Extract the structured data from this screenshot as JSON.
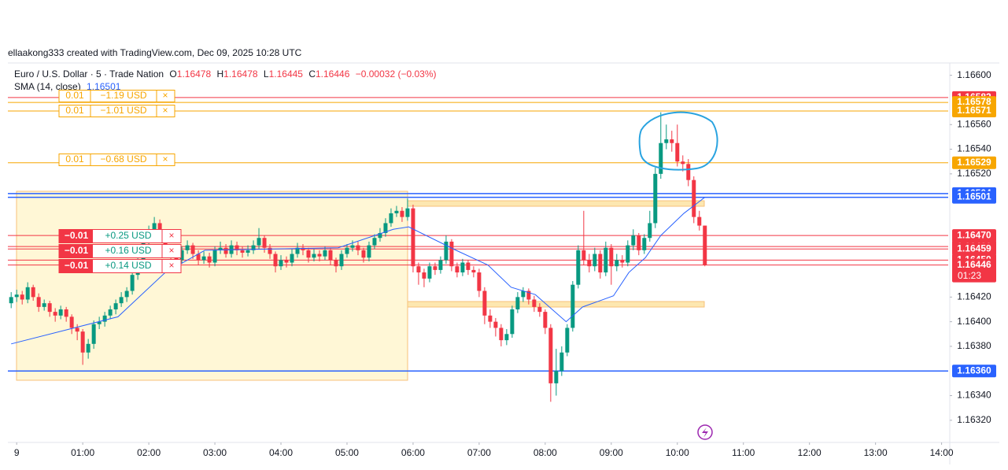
{
  "header": "ellaakong333 created with TradingView.com, Dec 09, 2025 10:28 UTC",
  "legend": {
    "symbol": "Euro / U.S. Dollar · 5 · Trade Nation",
    "o_label": "O",
    "o": "1.16478",
    "h_label": "H",
    "h": "1.16478",
    "l_label": "L",
    "l": "1.16445",
    "c_label": "C",
    "c": "1.16446",
    "change": "−0.00032 (−0.03%)",
    "sma_label": "SMA (14, close)",
    "sma_value": "1.16501"
  },
  "orders": [
    {
      "qty": "0.01",
      "pnl": "−1.19 USD",
      "kind": "pending"
    },
    {
      "qty": "0.01",
      "pnl": "−1.01 USD",
      "kind": "pending"
    },
    {
      "qty": "0.01",
      "pnl": "−0.68 USD",
      "kind": "pending"
    },
    {
      "qty": "−0.01",
      "pnl": "+0.25 USD",
      "kind": "open"
    },
    {
      "qty": "−0.01",
      "pnl": "+0.16 USD",
      "kind": "open"
    },
    {
      "qty": "−0.01",
      "pnl": "+0.14 USD",
      "kind": "open"
    }
  ],
  "close_symbol": "×",
  "chart_data": {
    "type": "candlestick",
    "up_color": "#089981",
    "down_color": "#f23645",
    "x": [
      -5,
      0,
      5,
      10,
      15,
      20,
      25,
      30,
      35,
      40,
      45,
      50,
      55,
      60,
      65,
      70,
      75,
      80,
      85,
      90,
      95,
      100,
      105,
      110,
      115,
      120,
      125,
      130,
      135,
      140,
      145,
      150,
      155,
      160,
      165,
      170,
      175,
      180,
      185,
      190,
      195,
      200,
      205,
      210,
      215,
      220,
      225,
      230,
      235,
      240,
      245,
      250,
      255,
      260,
      265,
      270,
      275,
      280,
      285,
      290,
      295,
      300,
      305,
      310,
      315,
      320,
      325,
      330,
      335,
      340,
      345,
      350,
      355,
      360,
      365,
      370,
      375,
      380,
      385,
      390,
      395,
      400,
      405,
      410,
      415,
      420,
      425,
      430,
      435,
      440,
      445,
      450,
      455,
      460,
      465,
      470,
      475,
      480,
      485,
      490,
      495,
      500,
      505,
      510,
      515,
      520,
      525,
      530,
      535,
      540,
      545,
      550,
      555,
      560,
      565,
      570,
      575,
      580,
      585,
      590,
      595,
      600,
      605,
      610,
      615,
      620,
      625
    ],
    "candles": [
      [
        1.16415,
        1.16424,
        1.16411,
        1.1642
      ],
      [
        1.1642,
        1.16426,
        1.16416,
        1.16422
      ],
      [
        1.16422,
        1.16425,
        1.16414,
        1.16418
      ],
      [
        1.16418,
        1.16432,
        1.16415,
        1.16428
      ],
      [
        1.16428,
        1.1643,
        1.16417,
        1.1642
      ],
      [
        1.1642,
        1.16423,
        1.16408,
        1.16412
      ],
      [
        1.16412,
        1.16418,
        1.16409,
        1.16415
      ],
      [
        1.16415,
        1.16417,
        1.16404,
        1.16408
      ],
      [
        1.16408,
        1.16411,
        1.164,
        1.16405
      ],
      [
        1.16405,
        1.16413,
        1.16402,
        1.1641
      ],
      [
        1.1641,
        1.16412,
        1.164,
        1.16404
      ],
      [
        1.16404,
        1.16406,
        1.1639,
        1.16395
      ],
      [
        1.16395,
        1.16398,
        1.16385,
        1.16392
      ],
      [
        1.16392,
        1.16394,
        1.16365,
        1.16375
      ],
      [
        1.16375,
        1.16386,
        1.1637,
        1.16382
      ],
      [
        1.16382,
        1.16401,
        1.16378,
        1.16398
      ],
      [
        1.16398,
        1.16404,
        1.16394,
        1.164
      ],
      [
        1.164,
        1.16408,
        1.16396,
        1.16405
      ],
      [
        1.16405,
        1.16413,
        1.16402,
        1.1641
      ],
      [
        1.1641,
        1.16418,
        1.16406,
        1.16415
      ],
      [
        1.16415,
        1.16424,
        1.16412,
        1.1642
      ],
      [
        1.1642,
        1.16428,
        1.16416,
        1.16425
      ],
      [
        1.16425,
        1.16441,
        1.16422,
        1.16438
      ],
      [
        1.16438,
        1.16452,
        1.16434,
        1.16448
      ],
      [
        1.16448,
        1.16468,
        1.16445,
        1.16465
      ],
      [
        1.16465,
        1.16478,
        1.16462,
        1.16475
      ],
      [
        1.16475,
        1.16485,
        1.1647,
        1.1648
      ],
      [
        1.1648,
        1.16483,
        1.16466,
        1.1647
      ],
      [
        1.1647,
        1.16472,
        1.16455,
        1.1646
      ],
      [
        1.1646,
        1.16463,
        1.1645,
        1.16455
      ],
      [
        1.16455,
        1.16458,
        1.16446,
        1.1645
      ],
      [
        1.1645,
        1.16461,
        1.16447,
        1.16458
      ],
      [
        1.16458,
        1.16466,
        1.16455,
        1.16462
      ],
      [
        1.16462,
        1.16464,
        1.16451,
        1.16455
      ],
      [
        1.16455,
        1.16458,
        1.16446,
        1.1645
      ],
      [
        1.1645,
        1.16457,
        1.16447,
        1.16453
      ],
      [
        1.16453,
        1.16456,
        1.16444,
        1.16448
      ],
      [
        1.16448,
        1.16461,
        1.16445,
        1.16458
      ],
      [
        1.16458,
        1.16465,
        1.16455,
        1.1646
      ],
      [
        1.1646,
        1.16463,
        1.16452,
        1.16455
      ],
      [
        1.16455,
        1.16466,
        1.16452,
        1.16462
      ],
      [
        1.16462,
        1.16465,
        1.16454,
        1.16458
      ],
      [
        1.16458,
        1.16461,
        1.16452,
        1.16456
      ],
      [
        1.16456,
        1.16462,
        1.16453,
        1.16458
      ],
      [
        1.16458,
        1.16466,
        1.16455,
        1.16462
      ],
      [
        1.16462,
        1.16476,
        1.16459,
        1.16468
      ],
      [
        1.16468,
        1.1647,
        1.16456,
        1.1646
      ],
      [
        1.1646,
        1.16463,
        1.16451,
        1.16455
      ],
      [
        1.16455,
        1.16457,
        1.1644,
        1.16445
      ],
      [
        1.16445,
        1.16454,
        1.16442,
        1.1645
      ],
      [
        1.1645,
        1.16453,
        1.16444,
        1.16448
      ],
      [
        1.16448,
        1.16459,
        1.16445,
        1.16455
      ],
      [
        1.16455,
        1.16464,
        1.16452,
        1.1646
      ],
      [
        1.1646,
        1.16463,
        1.16454,
        1.16458
      ],
      [
        1.16458,
        1.1646,
        1.16448,
        1.16452
      ],
      [
        1.16452,
        1.16459,
        1.16449,
        1.16455
      ],
      [
        1.16455,
        1.16458,
        1.16449,
        1.16453
      ],
      [
        1.16453,
        1.16461,
        1.1645,
        1.16458
      ],
      [
        1.16458,
        1.1646,
        1.16446,
        1.1645
      ],
      [
        1.1645,
        1.16452,
        1.1644,
        1.16445
      ],
      [
        1.16445,
        1.16458,
        1.16442,
        1.16455
      ],
      [
        1.16455,
        1.16463,
        1.16452,
        1.1646
      ],
      [
        1.1646,
        1.16466,
        1.16457,
        1.16462
      ],
      [
        1.16462,
        1.16465,
        1.16454,
        1.16458
      ],
      [
        1.16458,
        1.1646,
        1.16448,
        1.16452
      ],
      [
        1.16452,
        1.16465,
        1.16449,
        1.16462
      ],
      [
        1.16462,
        1.16471,
        1.16459,
        1.16468
      ],
      [
        1.16468,
        1.16476,
        1.16465,
        1.16472
      ],
      [
        1.16472,
        1.16484,
        1.16469,
        1.1648
      ],
      [
        1.1648,
        1.16492,
        1.16477,
        1.16488
      ],
      [
        1.16488,
        1.16494,
        1.16485,
        1.1649
      ],
      [
        1.1649,
        1.16493,
        1.16481,
        1.16485
      ],
      [
        1.16485,
        1.165,
        1.16482,
        1.16492
      ],
      [
        1.16492,
        1.16495,
        1.1644,
        1.16445
      ],
      [
        1.16445,
        1.16448,
        1.1643,
        1.1644
      ],
      [
        1.1644,
        1.16443,
        1.16428,
        1.16435
      ],
      [
        1.16435,
        1.16448,
        1.16432,
        1.16445
      ],
      [
        1.16445,
        1.16448,
        1.16438,
        1.16442
      ],
      [
        1.16442,
        1.16453,
        1.16439,
        1.1645
      ],
      [
        1.1645,
        1.1647,
        1.16447,
        1.16465
      ],
      [
        1.16465,
        1.16467,
        1.16441,
        1.16445
      ],
      [
        1.16445,
        1.16448,
        1.16436,
        1.1644
      ],
      [
        1.1644,
        1.16451,
        1.16437,
        1.16448
      ],
      [
        1.16448,
        1.1645,
        1.16438,
        1.16442
      ],
      [
        1.16442,
        1.16445,
        1.16436,
        1.1644
      ],
      [
        1.1644,
        1.16443,
        1.1642,
        1.16425
      ],
      [
        1.16425,
        1.16428,
        1.16398,
        1.16405
      ],
      [
        1.16405,
        1.1641,
        1.16395,
        1.164
      ],
      [
        1.164,
        1.16403,
        1.16388,
        1.16395
      ],
      [
        1.16395,
        1.16398,
        1.1638,
        1.16385
      ],
      [
        1.16385,
        1.16394,
        1.16381,
        1.1639
      ],
      [
        1.1639,
        1.16413,
        1.16387,
        1.1641
      ],
      [
        1.1641,
        1.16424,
        1.16407,
        1.1642
      ],
      [
        1.1642,
        1.16428,
        1.16416,
        1.16425
      ],
      [
        1.16425,
        1.16427,
        1.16414,
        1.16418
      ],
      [
        1.16418,
        1.16421,
        1.16408,
        1.16412
      ],
      [
        1.16412,
        1.16415,
        1.16404,
        1.16408
      ],
      [
        1.16408,
        1.1641,
        1.1639,
        1.16395
      ],
      [
        1.16395,
        1.16398,
        1.16335,
        1.1635
      ],
      [
        1.1635,
        1.16378,
        1.1634,
        1.1636
      ],
      [
        1.1636,
        1.1638,
        1.16356,
        1.16375
      ],
      [
        1.16375,
        1.16398,
        1.16372,
        1.16395
      ],
      [
        1.16395,
        1.16433,
        1.16392,
        1.1643
      ],
      [
        1.1643,
        1.16462,
        1.16427,
        1.16458
      ],
      [
        1.16458,
        1.1649,
        1.16446,
        1.1645
      ],
      [
        1.1645,
        1.16455,
        1.1644,
        1.16445
      ],
      [
        1.16445,
        1.1646,
        1.16441,
        1.16455
      ],
      [
        1.16455,
        1.16458,
        1.16435,
        1.1644
      ],
      [
        1.1644,
        1.16465,
        1.16437,
        1.1646
      ],
      [
        1.1646,
        1.16463,
        1.1643,
        1.16445
      ],
      [
        1.16445,
        1.16455,
        1.16441,
        1.1645
      ],
      [
        1.1645,
        1.16454,
        1.16444,
        1.16448
      ],
      [
        1.16448,
        1.16466,
        1.16445,
        1.16462
      ],
      [
        1.16462,
        1.16475,
        1.16458,
        1.1647
      ],
      [
        1.1647,
        1.16472,
        1.16454,
        1.16458
      ],
      [
        1.16458,
        1.16471,
        1.16455,
        1.16468
      ],
      [
        1.16468,
        1.1649,
        1.16465,
        1.1648
      ],
      [
        1.1648,
        1.16525,
        1.16476,
        1.1652
      ],
      [
        1.1652,
        1.1657,
        1.16516,
        1.16545
      ],
      [
        1.16545,
        1.1656,
        1.1654,
        1.16548
      ],
      [
        1.16548,
        1.16555,
        1.16538,
        1.16545
      ],
      [
        1.16545,
        1.1656,
        1.16526,
        1.1653
      ],
      [
        1.1653,
        1.16535,
        1.16522,
        1.16528
      ],
      [
        1.16528,
        1.16532,
        1.1651,
        1.16515
      ],
      [
        1.16515,
        1.16518,
        1.1648,
        1.16485
      ],
      [
        1.16485,
        1.1649,
        1.16474,
        1.16478
      ],
      [
        1.16478,
        1.16478,
        1.16445,
        1.16446
      ]
    ],
    "sma": {
      "color": "#2962ff",
      "x": [
        -5,
        92,
        135,
        171,
        292,
        342,
        356,
        399,
        428,
        449,
        471,
        499,
        514,
        542,
        556,
        571,
        585,
        606,
        625
      ],
      "values": [
        1.16382,
        1.16404,
        1.1644,
        1.16458,
        1.1646,
        1.16475,
        1.16477,
        1.16458,
        1.16446,
        1.16428,
        1.16422,
        1.164,
        1.16412,
        1.16421,
        1.1644,
        1.16452,
        1.1647,
        1.16488,
        1.16501
      ]
    },
    "price_lines": [
      {
        "value": 1.16582,
        "label": "1.16582",
        "color": "#f23645"
      },
      {
        "value": 1.16578,
        "label": "1.16578",
        "color": "#f7a600"
      },
      {
        "value": 1.16571,
        "label": "1.16571",
        "color": "#f7a600"
      },
      {
        "value": 1.16529,
        "label": "1.16529",
        "color": "#f7a600"
      },
      {
        "value": 1.16504,
        "label": "1.16504",
        "color": "#2962ff"
      },
      {
        "value": 1.16501,
        "label": "1.16501",
        "color": "#2962ff"
      },
      {
        "value": 1.1647,
        "label": "1.16470",
        "color": "#f23645"
      },
      {
        "value": 1.16461,
        "label": "1.16461",
        "color": "#f23645"
      },
      {
        "value": 1.16459,
        "label": "1.16459",
        "color": "#f23645"
      },
      {
        "value": 1.1645,
        "label": "1.16450",
        "color": "#f23645"
      },
      {
        "value": 1.16446,
        "label": "1.16446",
        "color": "#f23645",
        "countdown": "01:23"
      },
      {
        "value": 1.1636,
        "label": "1.16360",
        "color": "#2962ff"
      }
    ],
    "ylim": [
      1.1661,
      1.16302
    ],
    "yticks": [
      {
        "value": 1.166,
        "label": "1.16600"
      },
      {
        "value": 1.1656,
        "label": "1.16560"
      },
      {
        "value": 1.1654,
        "label": "1.16540"
      },
      {
        "value": 1.1652,
        "label": "1.16520"
      },
      {
        "value": 1.1642,
        "label": "1.16420"
      },
      {
        "value": 1.164,
        "label": "1.16400"
      },
      {
        "value": 1.1638,
        "label": "1.16380"
      },
      {
        "value": 1.1634,
        "label": "1.16340"
      },
      {
        "value": 1.1632,
        "label": "1.16320"
      }
    ],
    "xlim": [
      -8,
      846
    ],
    "xticks": [
      {
        "value": 0,
        "label": "9"
      },
      {
        "value": 60,
        "label": "01:00"
      },
      {
        "value": 120,
        "label": "02:00"
      },
      {
        "value": 180,
        "label": "03:00"
      },
      {
        "value": 240,
        "label": "04:00"
      },
      {
        "value": 300,
        "label": "05:00"
      },
      {
        "value": 360,
        "label": "06:00"
      },
      {
        "value": 420,
        "label": "07:00"
      },
      {
        "value": 480,
        "label": "08:00"
      },
      {
        "value": 540,
        "label": "09:00"
      },
      {
        "value": 600,
        "label": "10:00"
      },
      {
        "value": 660,
        "label": "11:00"
      },
      {
        "value": 720,
        "label": "12:00"
      },
      {
        "value": 780,
        "label": "13:00"
      },
      {
        "value": 840,
        "label": "14:00"
      }
    ]
  }
}
